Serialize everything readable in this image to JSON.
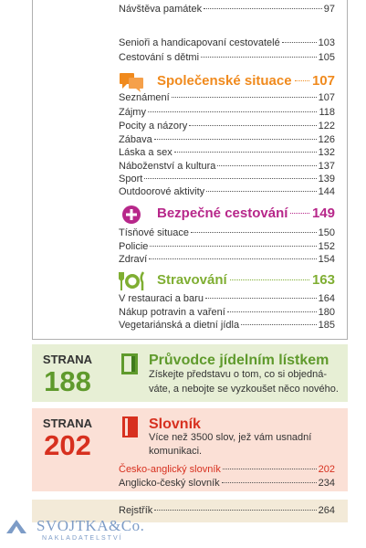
{
  "contents": {
    "top_entries": [
      {
        "label": "Návštěva památek",
        "page": 97
      },
      {
        "label": "Senioři a handicapovaní cestovatelé",
        "page": 103
      },
      {
        "label": "Cestování s dětmi",
        "page": 105
      }
    ],
    "sections": [
      {
        "title": "Společenské situace",
        "page": 107,
        "entries": [
          {
            "label": "Seznámení",
            "page": 107
          },
          {
            "label": "Zájmy",
            "page": 118
          },
          {
            "label": "Pocity a názory",
            "page": 122
          },
          {
            "label": "Zábava",
            "page": 126
          },
          {
            "label": "Láska a sex",
            "page": 132
          },
          {
            "label": "Náboženství a kultura",
            "page": 137
          },
          {
            "label": "Sport",
            "page": 139
          },
          {
            "label": "Outdoorové aktivity",
            "page": 144
          }
        ]
      },
      {
        "title": "Bezpečné cestování",
        "page": 149,
        "entries": [
          {
            "label": "Tísňové situace",
            "page": 150
          },
          {
            "label": "Policie",
            "page": 152
          },
          {
            "label": "Zdraví",
            "page": 154
          }
        ]
      },
      {
        "title": "Stravování",
        "page": 163,
        "entries": [
          {
            "label": "V restauraci a baru",
            "page": 164
          },
          {
            "label": "Nákup potravin a vaření",
            "page": 180
          },
          {
            "label": "Vegetariánská a dietní jídla",
            "page": 185
          }
        ]
      }
    ]
  },
  "features": [
    {
      "label": "STRANA",
      "page": 188,
      "title": "Průvodce jídelním lístkem",
      "text": [
        "Získejte představu o tom, co si objedná-",
        "váte, a nebojte se vyzkoušet něco nového."
      ]
    },
    {
      "label": "STRANA",
      "page": 202,
      "title": "Slovník",
      "text": [
        "Více než 3500 slov, jež vám usnadní",
        "komunikaci."
      ],
      "entries": [
        {
          "label": "Česko-anglický slovník",
          "page": 202
        },
        {
          "label": "Anglicko-český slovník",
          "page": 234
        }
      ]
    }
  ],
  "index": {
    "label": "Rejstřík",
    "page": 264
  },
  "publisher": {
    "name": "SVOJTKA&Co.",
    "subtitle": "NAKLADATELSTVÍ"
  }
}
